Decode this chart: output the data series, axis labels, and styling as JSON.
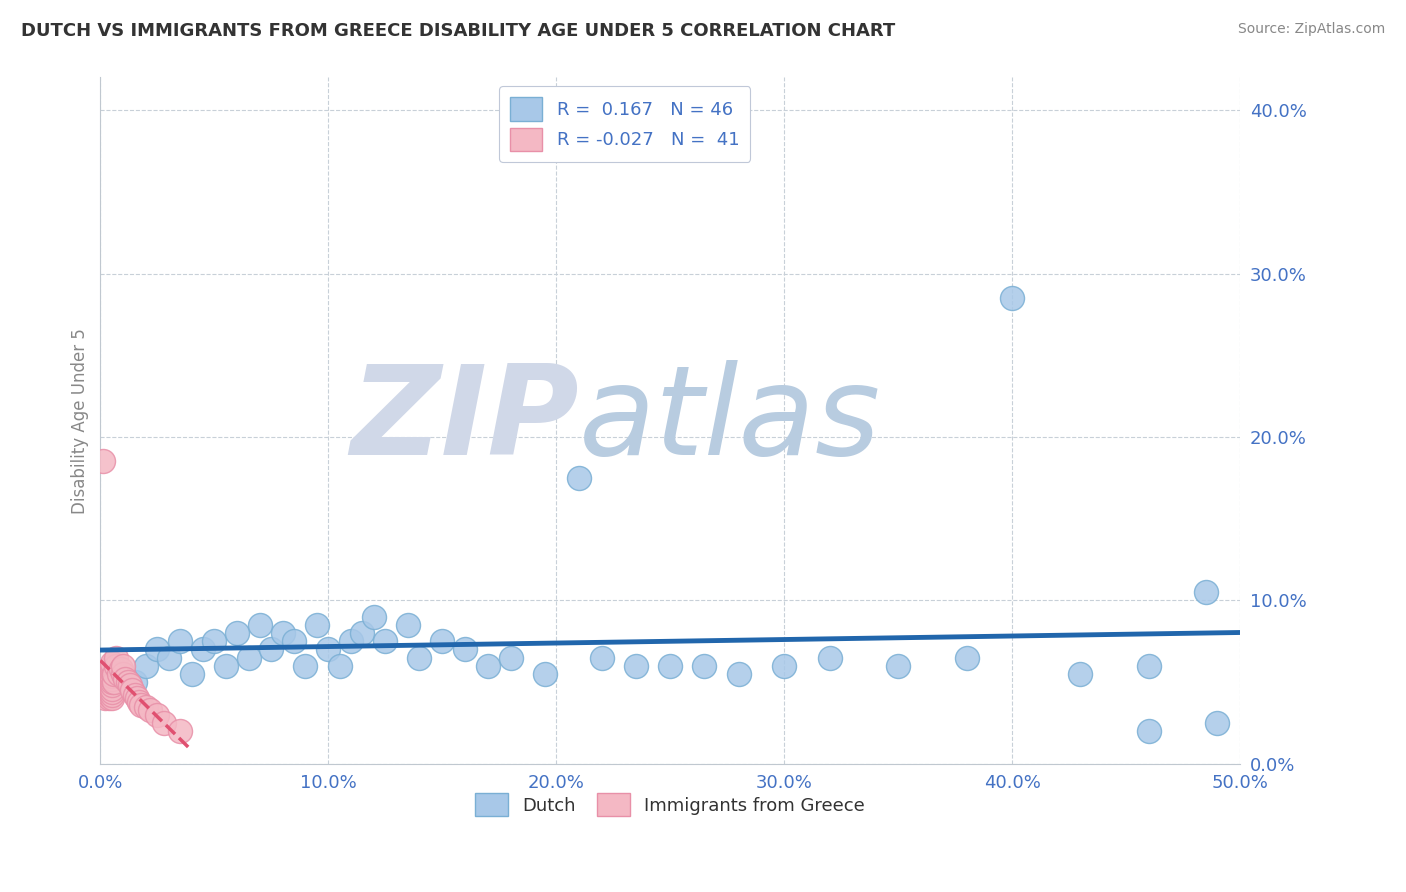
{
  "title": "DUTCH VS IMMIGRANTS FROM GREECE DISABILITY AGE UNDER 5 CORRELATION CHART",
  "source": "Source: ZipAtlas.com",
  "ylabel": "Disability Age Under 5",
  "xlim": [
    0.0,
    0.5
  ],
  "ylim": [
    0.0,
    0.42
  ],
  "xticks": [
    0.0,
    0.1,
    0.2,
    0.3,
    0.4,
    0.5
  ],
  "yticks": [
    0.0,
    0.1,
    0.2,
    0.3,
    0.4
  ],
  "dutch_R": 0.167,
  "dutch_N": 46,
  "greece_R": -0.027,
  "greece_N": 41,
  "dutch_color": "#a8c8e8",
  "dutch_edge_color": "#7aafd4",
  "greece_color": "#f4b8c4",
  "greece_edge_color": "#e890a8",
  "dutch_line_color": "#2166ac",
  "greece_line_color": "#e05070",
  "watermark_zip": "ZIP",
  "watermark_atlas": "atlas",
  "watermark_zip_color": "#d0d8e8",
  "watermark_atlas_color": "#b8cce0",
  "background_color": "#ffffff",
  "grid_color": "#c8d0d8",
  "dutch_x": [
    0.015,
    0.02,
    0.025,
    0.03,
    0.035,
    0.04,
    0.045,
    0.05,
    0.055,
    0.06,
    0.065,
    0.07,
    0.075,
    0.08,
    0.085,
    0.09,
    0.095,
    0.1,
    0.105,
    0.11,
    0.115,
    0.12,
    0.125,
    0.135,
    0.14,
    0.15,
    0.16,
    0.17,
    0.18,
    0.195,
    0.21,
    0.22,
    0.235,
    0.25,
    0.265,
    0.28,
    0.3,
    0.32,
    0.35,
    0.38,
    0.4,
    0.43,
    0.46,
    0.485,
    0.46,
    0.49
  ],
  "dutch_y": [
    0.05,
    0.06,
    0.07,
    0.065,
    0.075,
    0.055,
    0.07,
    0.075,
    0.06,
    0.08,
    0.065,
    0.085,
    0.07,
    0.08,
    0.075,
    0.06,
    0.085,
    0.07,
    0.06,
    0.075,
    0.08,
    0.09,
    0.075,
    0.085,
    0.065,
    0.075,
    0.07,
    0.06,
    0.065,
    0.055,
    0.175,
    0.065,
    0.06,
    0.06,
    0.06,
    0.055,
    0.06,
    0.065,
    0.06,
    0.065,
    0.285,
    0.055,
    0.06,
    0.105,
    0.02,
    0.025
  ],
  "greece_x": [
    0.002,
    0.003,
    0.003,
    0.004,
    0.004,
    0.004,
    0.004,
    0.005,
    0.005,
    0.005,
    0.005,
    0.005,
    0.005,
    0.005,
    0.005,
    0.005,
    0.005,
    0.005,
    0.005,
    0.006,
    0.006,
    0.007,
    0.007,
    0.008,
    0.009,
    0.01,
    0.01,
    0.011,
    0.012,
    0.013,
    0.014,
    0.015,
    0.016,
    0.017,
    0.018,
    0.02,
    0.022,
    0.025,
    0.028,
    0.035,
    0.001
  ],
  "greece_y": [
    0.04,
    0.042,
    0.045,
    0.04,
    0.042,
    0.045,
    0.048,
    0.04,
    0.042,
    0.044,
    0.046,
    0.048,
    0.05,
    0.052,
    0.054,
    0.056,
    0.058,
    0.06,
    0.062,
    0.05,
    0.055,
    0.06,
    0.065,
    0.055,
    0.058,
    0.055,
    0.06,
    0.052,
    0.05,
    0.048,
    0.045,
    0.042,
    0.04,
    0.038,
    0.036,
    0.035,
    0.033,
    0.03,
    0.025,
    0.02,
    0.185
  ]
}
